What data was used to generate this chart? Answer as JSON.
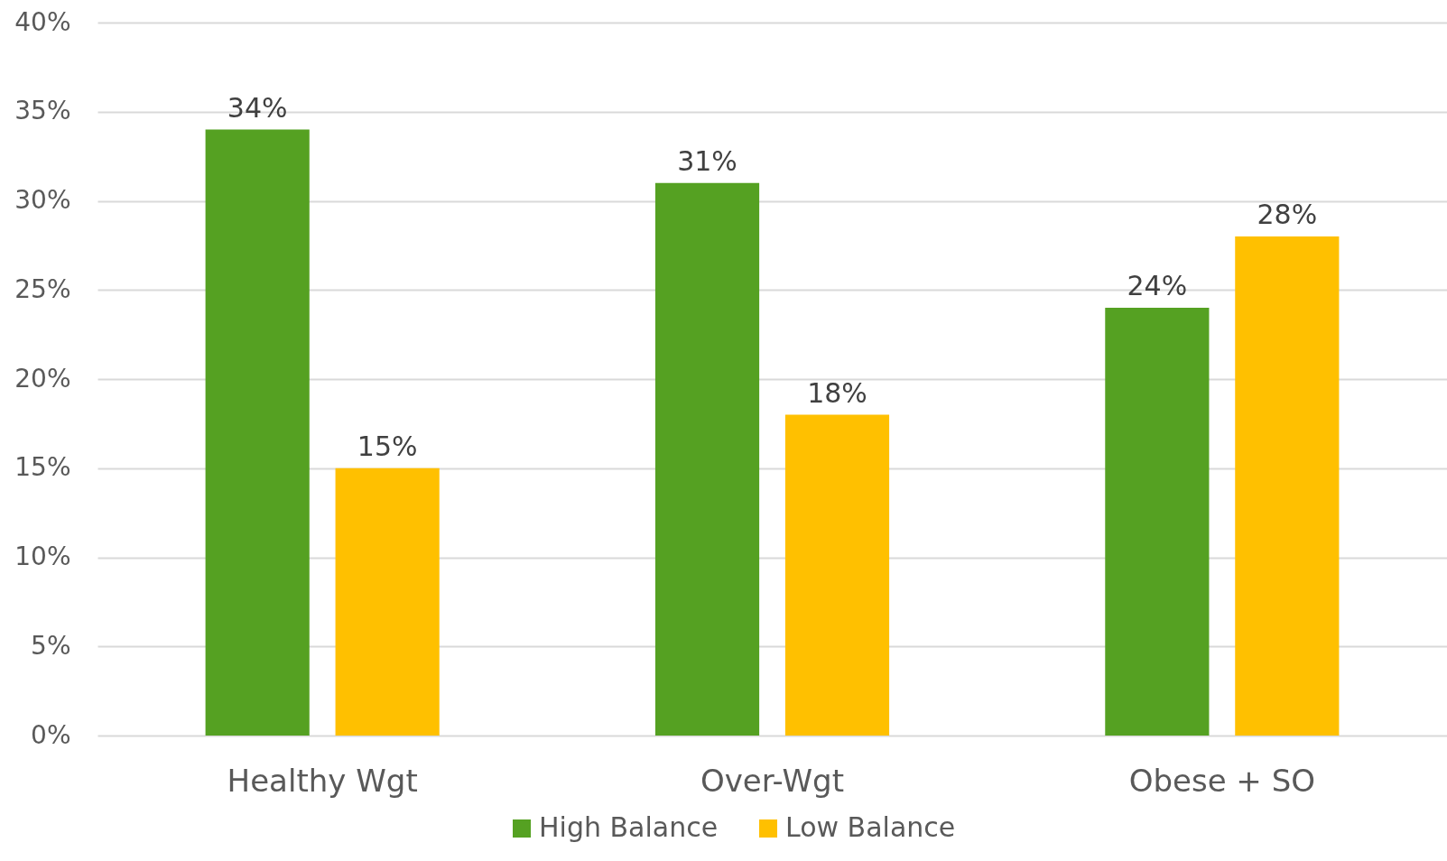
{
  "chart_data": {
    "type": "bar",
    "categories": [
      "Healthy Wgt",
      "Over-Wgt",
      "Obese + SO"
    ],
    "series": [
      {
        "name": "High Balance",
        "color": "#55a122",
        "values": [
          34,
          31,
          24
        ],
        "value_labels": [
          "34%",
          "31%",
          "24%"
        ]
      },
      {
        "name": "Low Balance",
        "color": "#ffc000",
        "values": [
          15,
          18,
          28
        ],
        "value_labels": [
          "15%",
          "18%",
          "28%"
        ]
      }
    ],
    "ylim": [
      0,
      40
    ],
    "yticks": [
      {
        "value": 0,
        "label": "0%"
      },
      {
        "value": 5,
        "label": "5%"
      },
      {
        "value": 10,
        "label": "10%"
      },
      {
        "value": 15,
        "label": "15%"
      },
      {
        "value": 20,
        "label": "20%"
      },
      {
        "value": 25,
        "label": "25%"
      },
      {
        "value": 30,
        "label": "30%"
      },
      {
        "value": 35,
        "label": "35%"
      },
      {
        "value": 40,
        "label": "40%"
      }
    ],
    "grid": "y",
    "legend": "bottom"
  }
}
